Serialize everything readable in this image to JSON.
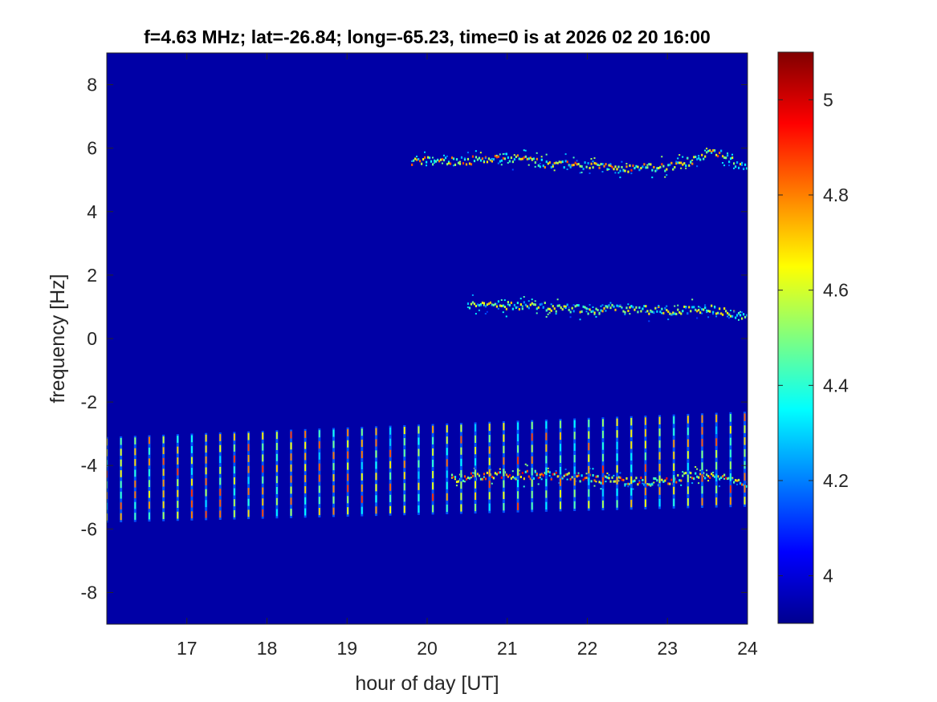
{
  "chart_data": {
    "type": "heatmap",
    "title": "f=4.63 MHz;  lat=-26.84; long=-65.23, time=0 is at 2026 02 20 16:00",
    "xlabel": "hour of day [UT]",
    "ylabel": "frequency [Hz]",
    "xlim": [
      16,
      24
    ],
    "ylim": [
      -9,
      9
    ],
    "x_ticks": [
      17,
      18,
      19,
      20,
      21,
      22,
      23,
      24
    ],
    "y_ticks": [
      -8,
      -6,
      -4,
      -2,
      0,
      2,
      4,
      6,
      8
    ],
    "colorbar": {
      "colormap": "jet",
      "clim": [
        3.9,
        5.1
      ],
      "ticks": [
        4,
        4.2,
        4.4,
        4.6,
        4.8,
        5
      ]
    },
    "background_value": 3.95,
    "features": [
      {
        "kind": "doppler_trace",
        "x": [
          19.8,
          20.5,
          21.0,
          21.5,
          22.0,
          22.5,
          23.0,
          23.3,
          23.6,
          23.8,
          24.0
        ],
        "y": [
          5.6,
          5.6,
          5.7,
          5.5,
          5.45,
          5.35,
          5.4,
          5.6,
          5.9,
          5.6,
          5.3
        ],
        "peak": 4.9
      },
      {
        "kind": "doppler_trace",
        "x": [
          20.5,
          21.0,
          21.5,
          22.0,
          22.5,
          23.0,
          23.5,
          24.0
        ],
        "y": [
          1.05,
          1.05,
          1.0,
          0.9,
          0.95,
          0.85,
          0.95,
          0.65
        ],
        "peak": 4.75
      },
      {
        "kind": "doppler_trace",
        "x": [
          20.3,
          21.0,
          21.5,
          22.0,
          22.5,
          23.0,
          23.3,
          23.6,
          24.0
        ],
        "y": [
          -4.4,
          -4.3,
          -4.3,
          -4.4,
          -4.5,
          -4.5,
          -4.3,
          -4.3,
          -4.6
        ],
        "peak": 5.0
      },
      {
        "kind": "pulse_train",
        "x_start": 16.0,
        "x_end": 24.0,
        "spacing": 0.177,
        "y_low_start": -5.8,
        "y_low_end": -5.3,
        "y_high_start": -3.1,
        "y_high_end": -2.3,
        "peak": 4.9
      }
    ]
  }
}
